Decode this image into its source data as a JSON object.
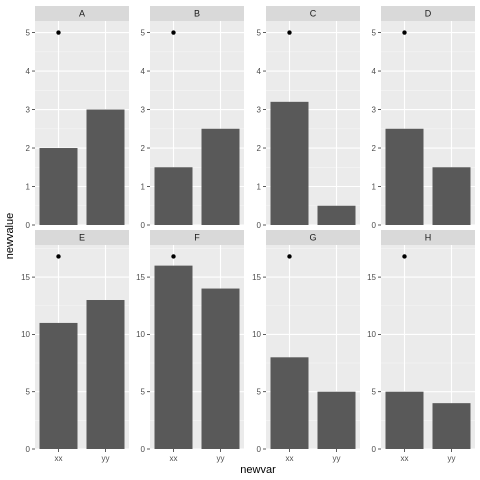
{
  "chart_data": {
    "type": "bar",
    "xlabel": "newvar",
    "ylabel": "newvalue",
    "categories": [
      "xx",
      "yy"
    ],
    "facet_scales": "free_y by row",
    "rows": [
      {
        "ylim": [
          0,
          5.3
        ],
        "y_ticks": [
          0,
          1,
          2,
          3,
          4,
          5
        ],
        "y_tick_labels": [
          "0",
          "1",
          "2",
          "3",
          "4",
          "5"
        ]
      },
      {
        "ylim": [
          0,
          17.8
        ],
        "y_ticks": [
          0,
          5,
          10,
          15
        ],
        "y_tick_labels": [
          "0",
          "5",
          "10",
          "15"
        ]
      }
    ],
    "panels": [
      {
        "label": "A",
        "row": 0,
        "values": [
          2,
          3
        ],
        "point": {
          "category": "xx",
          "value": 5
        }
      },
      {
        "label": "B",
        "row": 0,
        "values": [
          1.5,
          2.5
        ],
        "point": {
          "category": "xx",
          "value": 5
        }
      },
      {
        "label": "C",
        "row": 0,
        "values": [
          3.2,
          0.5
        ],
        "point": {
          "category": "xx",
          "value": 5
        }
      },
      {
        "label": "D",
        "row": 0,
        "values": [
          2.5,
          1.5
        ],
        "point": {
          "category": "xx",
          "value": 5
        }
      },
      {
        "label": "E",
        "row": 1,
        "values": [
          11,
          13
        ],
        "point": {
          "category": "xx",
          "value": 16.8
        }
      },
      {
        "label": "F",
        "row": 1,
        "values": [
          16,
          14
        ],
        "point": {
          "category": "xx",
          "value": 16.8
        }
      },
      {
        "label": "G",
        "row": 1,
        "values": [
          8,
          5
        ],
        "point": {
          "category": "xx",
          "value": 16.8
        }
      },
      {
        "label": "H",
        "row": 1,
        "values": [
          5,
          4
        ],
        "point": {
          "category": "xx",
          "value": 16.8
        }
      }
    ],
    "grid": true,
    "colors": {
      "panel_background": "#ebebeb",
      "strip_background": "#d9d9d9",
      "bar": "#595959",
      "grid_major": "#ffffff",
      "grid_minor": "#f5f5f5",
      "point": "#000000"
    }
  }
}
